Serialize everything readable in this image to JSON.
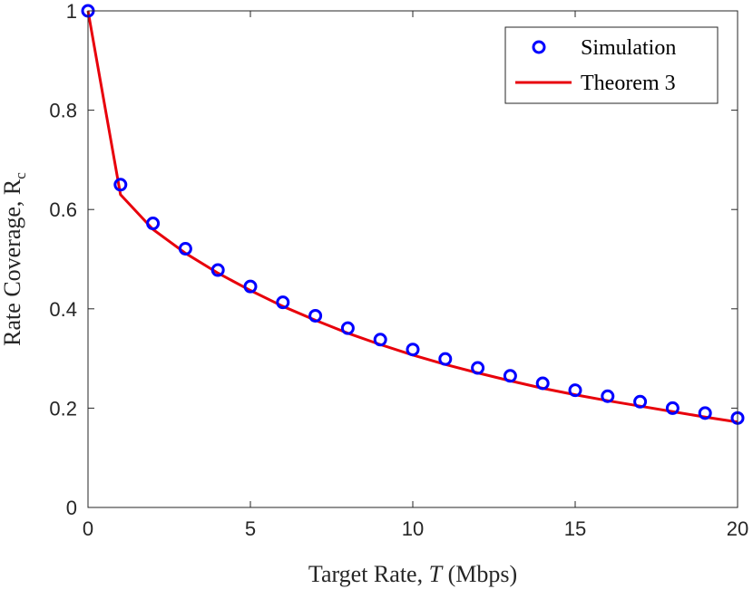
{
  "chart_data": {
    "type": "line",
    "title": "",
    "xlabel_parts": [
      "Target Rate, ",
      "T",
      " (Mbps)"
    ],
    "ylabel_parts": [
      "Rate Coverage, R",
      "c"
    ],
    "xlim": [
      0,
      20
    ],
    "ylim": [
      0,
      1
    ],
    "xticks": [
      0,
      5,
      10,
      15,
      20
    ],
    "xtick_labels": [
      "0",
      "5",
      "10",
      "15",
      "20"
    ],
    "yticks": [
      0,
      0.2,
      0.4,
      0.6,
      0.8,
      1
    ],
    "ytick_labels": [
      "0",
      "0.2",
      "0.4",
      "0.6",
      "0.8",
      "1"
    ],
    "grid": false,
    "legend_position": "top-right",
    "series": [
      {
        "name": "Simulation",
        "style": "markers",
        "marker": "circle",
        "color": "#0000ff",
        "x": [
          0,
          1,
          2,
          3,
          4,
          5,
          6,
          7,
          8,
          9,
          10,
          11,
          12,
          13,
          14,
          15,
          16,
          17,
          18,
          19,
          20
        ],
        "values": [
          1.0,
          0.65,
          0.572,
          0.521,
          0.478,
          0.445,
          0.413,
          0.386,
          0.361,
          0.338,
          0.318,
          0.299,
          0.281,
          0.265,
          0.25,
          0.236,
          0.224,
          0.213,
          0.2,
          0.19,
          0.18
        ]
      },
      {
        "name": "Theorem 3",
        "style": "line",
        "color": "#e8000b",
        "x": [
          0,
          1,
          2,
          3,
          4,
          5,
          6,
          7,
          8,
          9,
          10,
          11,
          12,
          13,
          14,
          15,
          16,
          17,
          18,
          19,
          20
        ],
        "values": [
          1.0,
          0.63,
          0.56,
          0.512,
          0.472,
          0.437,
          0.405,
          0.377,
          0.351,
          0.328,
          0.307,
          0.288,
          0.271,
          0.255,
          0.24,
          0.227,
          0.215,
          0.204,
          0.193,
          0.182,
          0.172
        ]
      }
    ]
  }
}
